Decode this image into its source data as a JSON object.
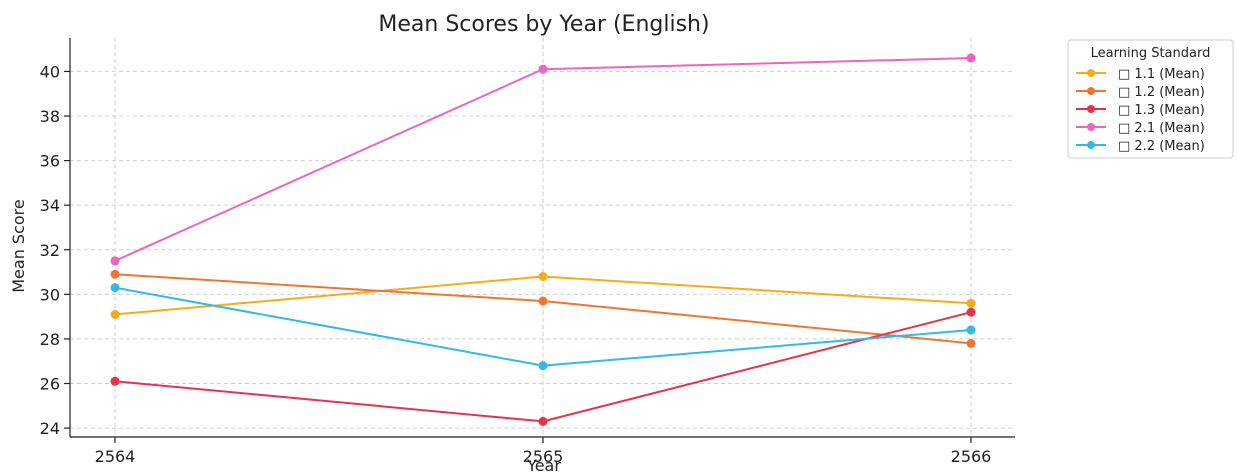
{
  "chart_data": {
    "type": "line",
    "title": "Mean Scores by Year (English)",
    "xlabel": "Year",
    "ylabel": "Mean Score",
    "x": [
      "2564",
      "2565",
      "2566"
    ],
    "ylim": [
      23.6,
      41.5
    ],
    "yticks": [
      24,
      26,
      28,
      30,
      32,
      34,
      36,
      38,
      40
    ],
    "grid": true,
    "legend": {
      "title": "Learning Standard",
      "placement": "outside-top-right"
    },
    "series": [
      {
        "name": "□ 1.1 (Mean)",
        "color": "#f7ab1b",
        "values": [
          29.1,
          30.8,
          29.6
        ]
      },
      {
        "name": "□ 1.2 (Mean)",
        "color": "#ef7533",
        "values": [
          30.9,
          29.7,
          27.8
        ]
      },
      {
        "name": "□ 1.3 (Mean)",
        "color": "#e5334f",
        "values": [
          26.1,
          24.3,
          29.2
        ]
      },
      {
        "name": "□ 2.1 (Mean)",
        "color": "#ec65c3",
        "values": [
          31.5,
          40.1,
          40.6
        ]
      },
      {
        "name": "□ 2.2 (Mean)",
        "color": "#33b9e6",
        "values": [
          30.3,
          26.8,
          28.4
        ]
      }
    ]
  }
}
